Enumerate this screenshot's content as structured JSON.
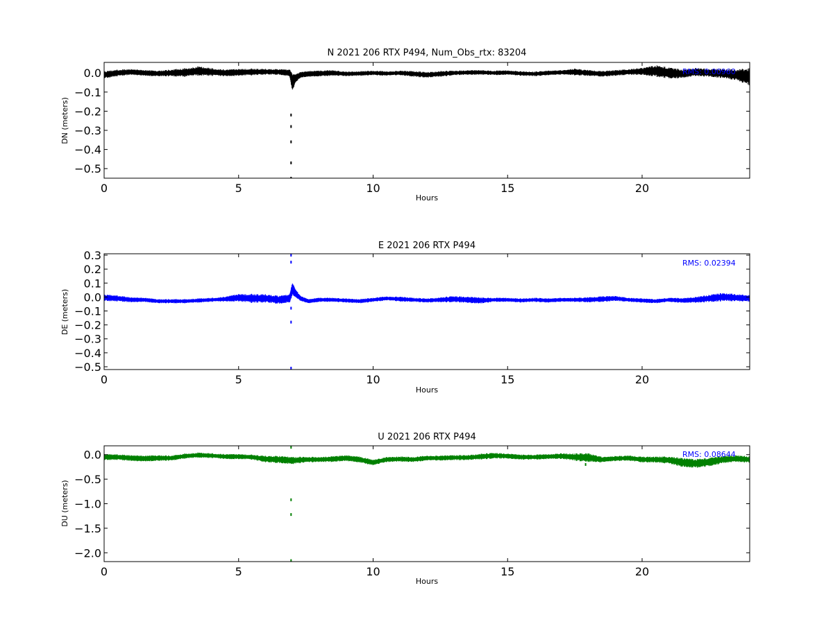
{
  "chart_data": [
    {
      "type": "line",
      "title": "N 2021 206 RTX  P494, Num_Obs_rtx: 83204",
      "xlabel": "Hours",
      "ylabel": "DN (meters)",
      "xlim": [
        0,
        24
      ],
      "ylim": [
        -0.55,
        0.055
      ],
      "xticks": [
        0,
        5,
        10,
        15,
        20
      ],
      "yticks": [
        0.0,
        -0.1,
        -0.2,
        -0.3,
        -0.4,
        -0.5
      ],
      "xtick_labels": [
        "0",
        "5",
        "10",
        "15",
        "20"
      ],
      "ytick_labels": [
        "0.0",
        "−0.1",
        "−0.2",
        "−0.3",
        "−0.4",
        "−0.5"
      ],
      "rms_label": "RMS:  0.00960",
      "series_color": "#000000",
      "rms_color": "#0000ff",
      "series": [
        {
          "x": [
            0,
            0.5,
            1,
            1.5,
            2,
            2.5,
            3,
            3.5,
            4,
            4.5,
            5,
            5.5,
            6,
            6.5,
            6.9,
            7.0,
            7.1,
            7.3,
            7.6,
            8,
            8.5,
            9,
            9.5,
            10,
            10.5,
            11,
            11.5,
            12,
            12.5,
            13,
            13.5,
            14,
            14.5,
            15,
            15.5,
            16,
            16.5,
            17,
            17.5,
            18,
            18.5,
            19,
            19.5,
            20,
            20.5,
            21,
            21.5,
            22,
            22.5,
            23,
            23.5,
            24
          ],
          "y": [
            -0.01,
            0.0,
            0.005,
            0.0,
            -0.003,
            0.0,
            0.002,
            0.01,
            0.005,
            0.0,
            0.003,
            0.005,
            0.006,
            0.005,
            0.0,
            -0.05,
            -0.03,
            -0.01,
            -0.005,
            -0.003,
            0.0,
            -0.005,
            -0.003,
            0.0,
            -0.003,
            0.0,
            -0.005,
            -0.01,
            -0.005,
            0.0,
            0.002,
            0.003,
            0.0,
            0.002,
            -0.003,
            -0.005,
            0.0,
            0.003,
            0.005,
            0.0,
            -0.005,
            0.0,
            0.005,
            0.008,
            0.01,
            0.0,
            -0.005,
            0.005,
            0.0,
            -0.003,
            -0.01,
            -0.02
          ],
          "band": [
            0.012,
            0.012,
            0.01,
            0.01,
            0.01,
            0.012,
            0.015,
            0.016,
            0.014,
            0.012,
            0.012,
            0.012,
            0.01,
            0.01,
            0.012,
            0.03,
            0.015,
            0.01,
            0.01,
            0.01,
            0.01,
            0.008,
            0.008,
            0.008,
            0.008,
            0.008,
            0.01,
            0.01,
            0.01,
            0.008,
            0.008,
            0.008,
            0.008,
            0.008,
            0.008,
            0.008,
            0.008,
            0.008,
            0.012,
            0.01,
            0.01,
            0.01,
            0.01,
            0.012,
            0.02,
            0.02,
            0.015,
            0.014,
            0.014,
            0.016,
            0.02,
            0.03
          ]
        }
      ],
      "outliers": [
        {
          "x": 6.95,
          "y": -0.22
        },
        {
          "x": 6.95,
          "y": -0.28
        },
        {
          "x": 6.95,
          "y": -0.36
        },
        {
          "x": 6.95,
          "y": -0.47
        },
        {
          "x": 6.95,
          "y": -0.55
        }
      ]
    },
    {
      "type": "line",
      "title": "E 2021 206 RTX  P494",
      "xlabel": "Hours",
      "ylabel": "DE (meters)",
      "xlim": [
        0,
        24
      ],
      "ylim": [
        -0.52,
        0.31
      ],
      "xticks": [
        0,
        5,
        10,
        15,
        20
      ],
      "yticks": [
        0.3,
        0.2,
        0.1,
        0.0,
        -0.1,
        -0.2,
        -0.3,
        -0.4,
        -0.5
      ],
      "xtick_labels": [
        "0",
        "5",
        "10",
        "15",
        "20"
      ],
      "ytick_labels": [
        "0.3",
        "0.2",
        "0.1",
        "0.0",
        "−0.1",
        "−0.2",
        "−0.3",
        "−0.4",
        "−0.5"
      ],
      "rms_label": "RMS:  0.02394",
      "series_color": "#0000ff",
      "rms_color": "#0000ff",
      "series": [
        {
          "x": [
            0,
            0.5,
            1,
            1.5,
            2,
            2.5,
            3,
            3.5,
            4,
            4.5,
            5,
            5.5,
            6,
            6.5,
            6.9,
            7.0,
            7.1,
            7.3,
            7.6,
            8,
            8.5,
            9,
            9.5,
            10,
            10.5,
            11,
            11.5,
            12,
            12.5,
            13,
            13.5,
            14,
            14.5,
            15,
            15.5,
            16,
            16.5,
            17,
            17.5,
            18,
            18.5,
            19,
            19.5,
            20,
            20.5,
            21,
            21.5,
            22,
            22.5,
            23,
            23.5,
            24
          ],
          "y": [
            -0.005,
            -0.01,
            -0.02,
            -0.02,
            -0.03,
            -0.03,
            -0.03,
            -0.025,
            -0.02,
            -0.015,
            -0.005,
            -0.01,
            -0.01,
            -0.02,
            -0.01,
            0.06,
            0.03,
            -0.01,
            -0.03,
            -0.02,
            -0.02,
            -0.025,
            -0.03,
            -0.02,
            -0.01,
            -0.015,
            -0.02,
            -0.025,
            -0.02,
            -0.015,
            -0.02,
            -0.025,
            -0.02,
            -0.02,
            -0.025,
            -0.02,
            -0.025,
            -0.02,
            -0.02,
            -0.02,
            -0.015,
            -0.01,
            -0.02,
            -0.025,
            -0.03,
            -0.02,
            -0.025,
            -0.02,
            -0.01,
            0.0,
            -0.005,
            -0.01
          ],
          "band": [
            0.015,
            0.015,
            0.012,
            0.01,
            0.01,
            0.01,
            0.01,
            0.01,
            0.01,
            0.012,
            0.018,
            0.022,
            0.02,
            0.02,
            0.02,
            0.03,
            0.02,
            0.012,
            0.01,
            0.01,
            0.01,
            0.01,
            0.01,
            0.01,
            0.01,
            0.012,
            0.01,
            0.01,
            0.012,
            0.015,
            0.015,
            0.015,
            0.01,
            0.01,
            0.01,
            0.01,
            0.01,
            0.01,
            0.01,
            0.012,
            0.014,
            0.012,
            0.01,
            0.01,
            0.01,
            0.01,
            0.012,
            0.014,
            0.018,
            0.02,
            0.018,
            0.015
          ]
        }
      ],
      "outliers": [
        {
          "x": 6.95,
          "y": 0.3
        },
        {
          "x": 6.95,
          "y": 0.25
        },
        {
          "x": 6.95,
          "y": -0.08
        },
        {
          "x": 6.95,
          "y": -0.18
        },
        {
          "x": 6.95,
          "y": -0.51
        }
      ]
    },
    {
      "type": "line",
      "title": "U 2021 206 RTX  P494",
      "xlabel": "Hours",
      "ylabel": "DU (meters)",
      "xlim": [
        0,
        24
      ],
      "ylim": [
        -2.18,
        0.18
      ],
      "xticks": [
        0,
        5,
        10,
        15,
        20
      ],
      "yticks": [
        0.0,
        -0.5,
        -1.0,
        -1.5,
        -2.0
      ],
      "xtick_labels": [
        "0",
        "5",
        "10",
        "15",
        "20"
      ],
      "ytick_labels": [
        "0.0",
        "−0.5",
        "−1.0",
        "−1.5",
        "−2.0"
      ],
      "rms_label": "RMS:  0.08644",
      "series_color": "#008000",
      "rms_color": "#0000ff",
      "series": [
        {
          "x": [
            0,
            0.5,
            1,
            1.5,
            2,
            2.5,
            3,
            3.5,
            4,
            4.5,
            5,
            5.5,
            6,
            6.5,
            7,
            7.5,
            8,
            8.5,
            9,
            9.5,
            10,
            10.5,
            11,
            11.5,
            12,
            12.5,
            13,
            13.5,
            14,
            14.5,
            15,
            15.5,
            16,
            16.5,
            17,
            17.5,
            18,
            18.5,
            19,
            19.5,
            20,
            20.5,
            21,
            21.5,
            22,
            22.5,
            23,
            23.5,
            24
          ],
          "y": [
            -0.05,
            -0.05,
            -0.07,
            -0.08,
            -0.07,
            -0.07,
            -0.03,
            -0.01,
            -0.02,
            -0.04,
            -0.04,
            -0.05,
            -0.09,
            -0.1,
            -0.12,
            -0.1,
            -0.1,
            -0.09,
            -0.07,
            -0.1,
            -0.16,
            -0.1,
            -0.09,
            -0.1,
            -0.07,
            -0.07,
            -0.06,
            -0.06,
            -0.04,
            -0.02,
            -0.03,
            -0.05,
            -0.05,
            -0.04,
            -0.03,
            -0.05,
            -0.06,
            -0.1,
            -0.08,
            -0.07,
            -0.1,
            -0.1,
            -0.11,
            -0.16,
            -0.18,
            -0.15,
            -0.1,
            -0.08,
            -0.1
          ],
          "band": [
            0.04,
            0.04,
            0.04,
            0.04,
            0.04,
            0.035,
            0.035,
            0.035,
            0.035,
            0.035,
            0.035,
            0.035,
            0.045,
            0.05,
            0.05,
            0.04,
            0.035,
            0.04,
            0.04,
            0.04,
            0.04,
            0.035,
            0.035,
            0.035,
            0.035,
            0.035,
            0.035,
            0.035,
            0.04,
            0.04,
            0.035,
            0.035,
            0.035,
            0.035,
            0.04,
            0.05,
            0.06,
            0.04,
            0.035,
            0.035,
            0.04,
            0.04,
            0.05,
            0.06,
            0.06,
            0.06,
            0.05,
            0.045,
            0.045
          ]
        }
      ],
      "outliers": [
        {
          "x": 6.95,
          "y": 0.15
        },
        {
          "x": 6.95,
          "y": -0.92
        },
        {
          "x": 6.95,
          "y": -1.22
        },
        {
          "x": 6.95,
          "y": -2.16
        },
        {
          "x": 17.9,
          "y": -0.2
        }
      ]
    }
  ]
}
